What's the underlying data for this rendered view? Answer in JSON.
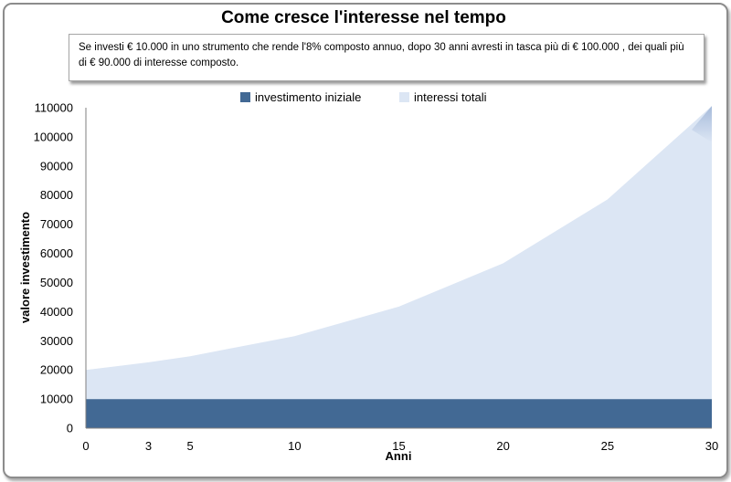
{
  "chart_data": {
    "type": "area",
    "title": "Come cresce l'interesse nel tempo",
    "annotation": "Se investi € 10.000 in uno strumento che rende l'8% composto annuo, dopo 30 anni avresti in tasca più di € 100.000 , dei quali più di  €  90.000 di interesse composto.",
    "xlabel": "Anni",
    "ylabel": "valore investimento",
    "x": [
      0,
      3,
      5,
      10,
      15,
      20,
      25,
      30
    ],
    "x_tick_labels": [
      "0",
      "3",
      "5",
      "10",
      "15",
      "20",
      "25",
      "30"
    ],
    "y_tick_labels": [
      "0",
      "10000",
      "20000",
      "30000",
      "40000",
      "50000",
      "60000",
      "70000",
      "80000",
      "90000",
      "100000",
      "110000"
    ],
    "ylim": [
      0,
      110000
    ],
    "stacked": true,
    "legend_position": "top",
    "series": [
      {
        "name": "investimento iniziale",
        "color": "#426994",
        "values": [
          10000,
          10000,
          10000,
          10000,
          10000,
          10000,
          10000,
          10000
        ]
      },
      {
        "name": "interessi totali",
        "color": "#dce6f4",
        "values": [
          10000,
          12600,
          14700,
          21600,
          31700,
          46600,
          68500,
          100600
        ]
      }
    ]
  }
}
